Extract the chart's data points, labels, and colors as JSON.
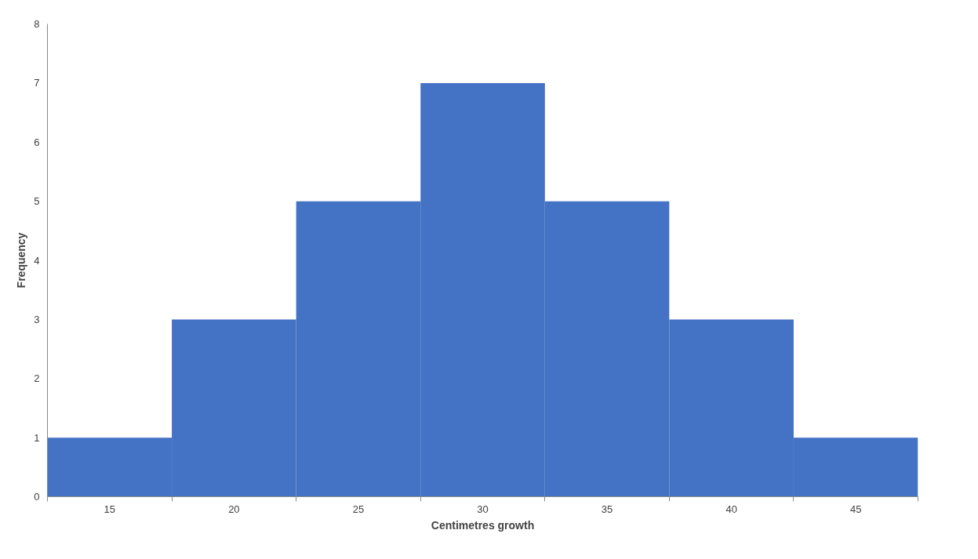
{
  "chart_data": {
    "type": "bar",
    "xlabel": "Centimetres growth",
    "ylabel": "Frequency",
    "categories": [
      "15",
      "20",
      "25",
      "30",
      "35",
      "40",
      "45"
    ],
    "values": [
      1,
      3,
      5,
      7,
      5,
      3,
      1
    ],
    "color": "#4472c4",
    "ylim": [
      0,
      8
    ],
    "yticks": [
      0,
      1,
      2,
      3,
      4,
      5,
      6,
      7,
      8
    ],
    "grid": false
  }
}
